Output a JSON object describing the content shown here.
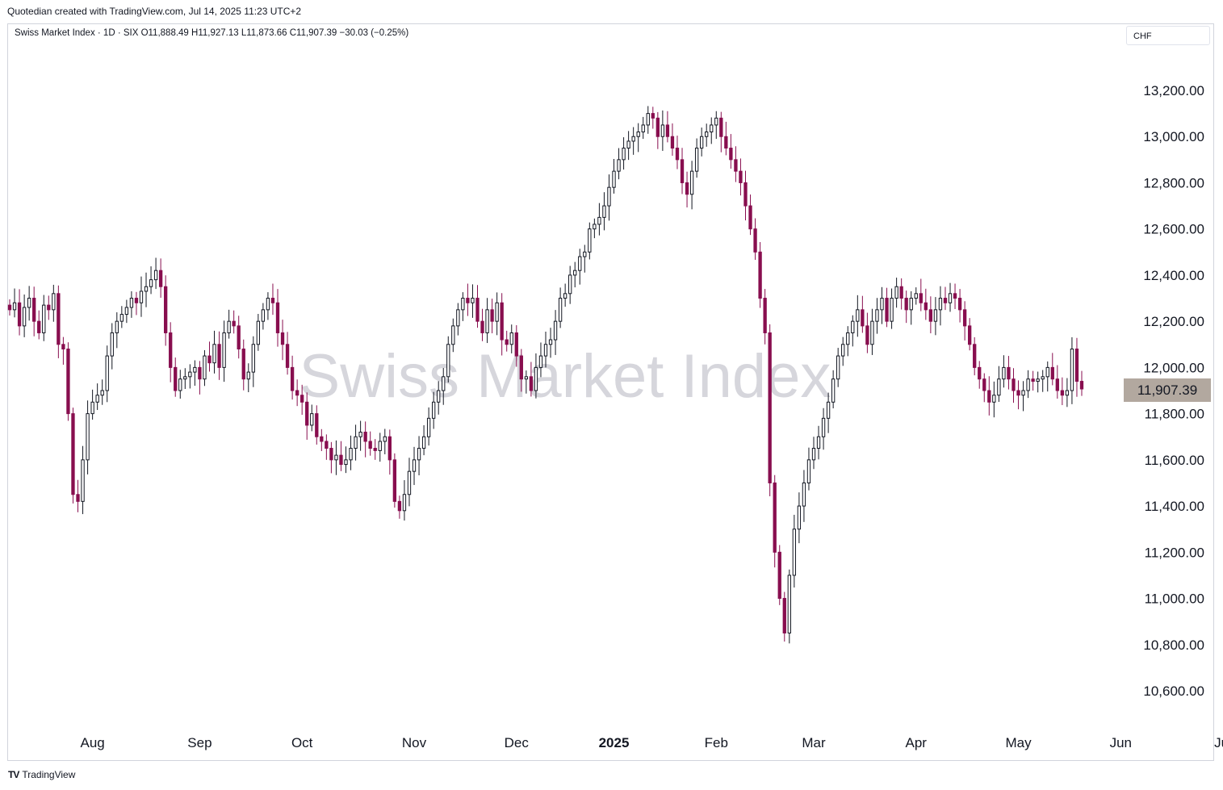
{
  "header": {
    "credit": "Quotedian created with TradingView.com, Jul 14, 2025 11:23 UTC+2"
  },
  "symbol_bar": {
    "text": "Swiss Market Index · 1D · SIX  O11,888.49  H11,927.13  L11,873.66  C11,907.39  −30.03 (−0.25%)"
  },
  "currency": "CHF",
  "last_price_label": "11,907.39",
  "watermark": "Swiss Market Index",
  "footer": {
    "brand": "TradingView",
    "brand_mark": "TV"
  },
  "colors": {
    "candle": "#131722",
    "down": "#880e4f",
    "price_tag": "#b2a89f",
    "watermark": "#d6d6dc",
    "grid": "#d1d4dc"
  },
  "chart_data": {
    "type": "candlestick",
    "title": "",
    "ylim": [
      10450,
      13450
    ],
    "y_ticks": [
      10600,
      10800,
      11000,
      11200,
      11400,
      11600,
      11800,
      12000,
      12200,
      12400,
      12600,
      12800,
      13000,
      13200
    ],
    "y_tick_labels": [
      "10,600.00",
      "10,800.00",
      "11,000.00",
      "11,200.00",
      "11,400.00",
      "11,600.00",
      "11,800.00",
      "12,000.00",
      "12,200.00",
      "12,400.00",
      "12,600.00",
      "12,800.00",
      "13,000.00",
      "13,200.00"
    ],
    "x_ticks": [
      {
        "label": "Aug",
        "index": 17
      },
      {
        "label": "Sep",
        "index": 39
      },
      {
        "label": "Oct",
        "index": 60
      },
      {
        "label": "Nov",
        "index": 83
      },
      {
        "label": "Dec",
        "index": 104
      },
      {
        "label": "2025",
        "index": 124,
        "bold": true
      },
      {
        "label": "Feb",
        "index": 145
      },
      {
        "label": "Mar",
        "index": 165
      },
      {
        "label": "Apr",
        "index": 186
      },
      {
        "label": "May",
        "index": 207
      },
      {
        "label": "Jun",
        "index": 228
      },
      {
        "label": "Jul",
        "index": 249
      }
    ],
    "x_start_index": 0,
    "last_value": 11907.39,
    "closes": [
      12250,
      12280,
      12180,
      12260,
      12300,
      12200,
      12150,
      12270,
      12250,
      12320,
      12100,
      12080,
      11800,
      11450,
      11420,
      11600,
      11800,
      11850,
      11880,
      11900,
      12050,
      12150,
      12200,
      12230,
      12260,
      12300,
      12280,
      12330,
      12350,
      12380,
      12420,
      12350,
      12150,
      12000,
      11900,
      11950,
      11960,
      11980,
      12000,
      11950,
      12050,
      12020,
      12100,
      12000,
      12150,
      12200,
      12180,
      12080,
      11950,
      11980,
      12100,
      12200,
      12250,
      12300,
      12280,
      12150,
      12100,
      12000,
      11900,
      11880,
      11850,
      11750,
      11800,
      11700,
      11680,
      11650,
      11600,
      11620,
      11580,
      11600,
      11650,
      11700,
      11720,
      11680,
      11650,
      11640,
      11680,
      11700,
      11600,
      11420,
      11380,
      11450,
      11550,
      11600,
      11650,
      11700,
      11780,
      11850,
      11900,
      11960,
      12100,
      12180,
      12250,
      12300,
      12280,
      12300,
      12200,
      12150,
      12250,
      12200,
      12280,
      12120,
      12100,
      12150,
      12050,
      11950,
      11960,
      11900,
      12000,
      12050,
      12100,
      12120,
      12200,
      12300,
      12320,
      12400,
      12420,
      12480,
      12500,
      12600,
      12620,
      12650,
      12700,
      12780,
      12850,
      12900,
      12950,
      12980,
      13000,
      13020,
      13050,
      13100,
      13080,
      13000,
      13050,
      13000,
      12950,
      12900,
      12800,
      12750,
      12850,
      12950,
      13000,
      13020,
      13050,
      13080,
      13000,
      12950,
      12900,
      12850,
      12800,
      12700,
      12600,
      12500,
      12300,
      12150,
      11500,
      11200,
      11000,
      10850,
      11100,
      11300,
      11400,
      11500,
      11600,
      11650,
      11700,
      11780,
      11850,
      11950,
      12050,
      12100,
      12150,
      12200,
      12250,
      12180,
      12100,
      12200,
      12250,
      12300,
      12200,
      12300,
      12350,
      12300,
      12250,
      12300,
      12320,
      12280,
      12250,
      12200,
      12250,
      12300,
      12280,
      12320,
      12300,
      12250,
      12180,
      12100,
      12000,
      11950,
      11900,
      11850,
      11880,
      11950,
      12000,
      11950,
      11900,
      11880,
      11900,
      11950,
      11940,
      11950,
      11960,
      12000,
      11950,
      11900,
      11880,
      11900,
      12080,
      11940,
      11907
    ],
    "range": "2024-07 to 2025-07"
  }
}
